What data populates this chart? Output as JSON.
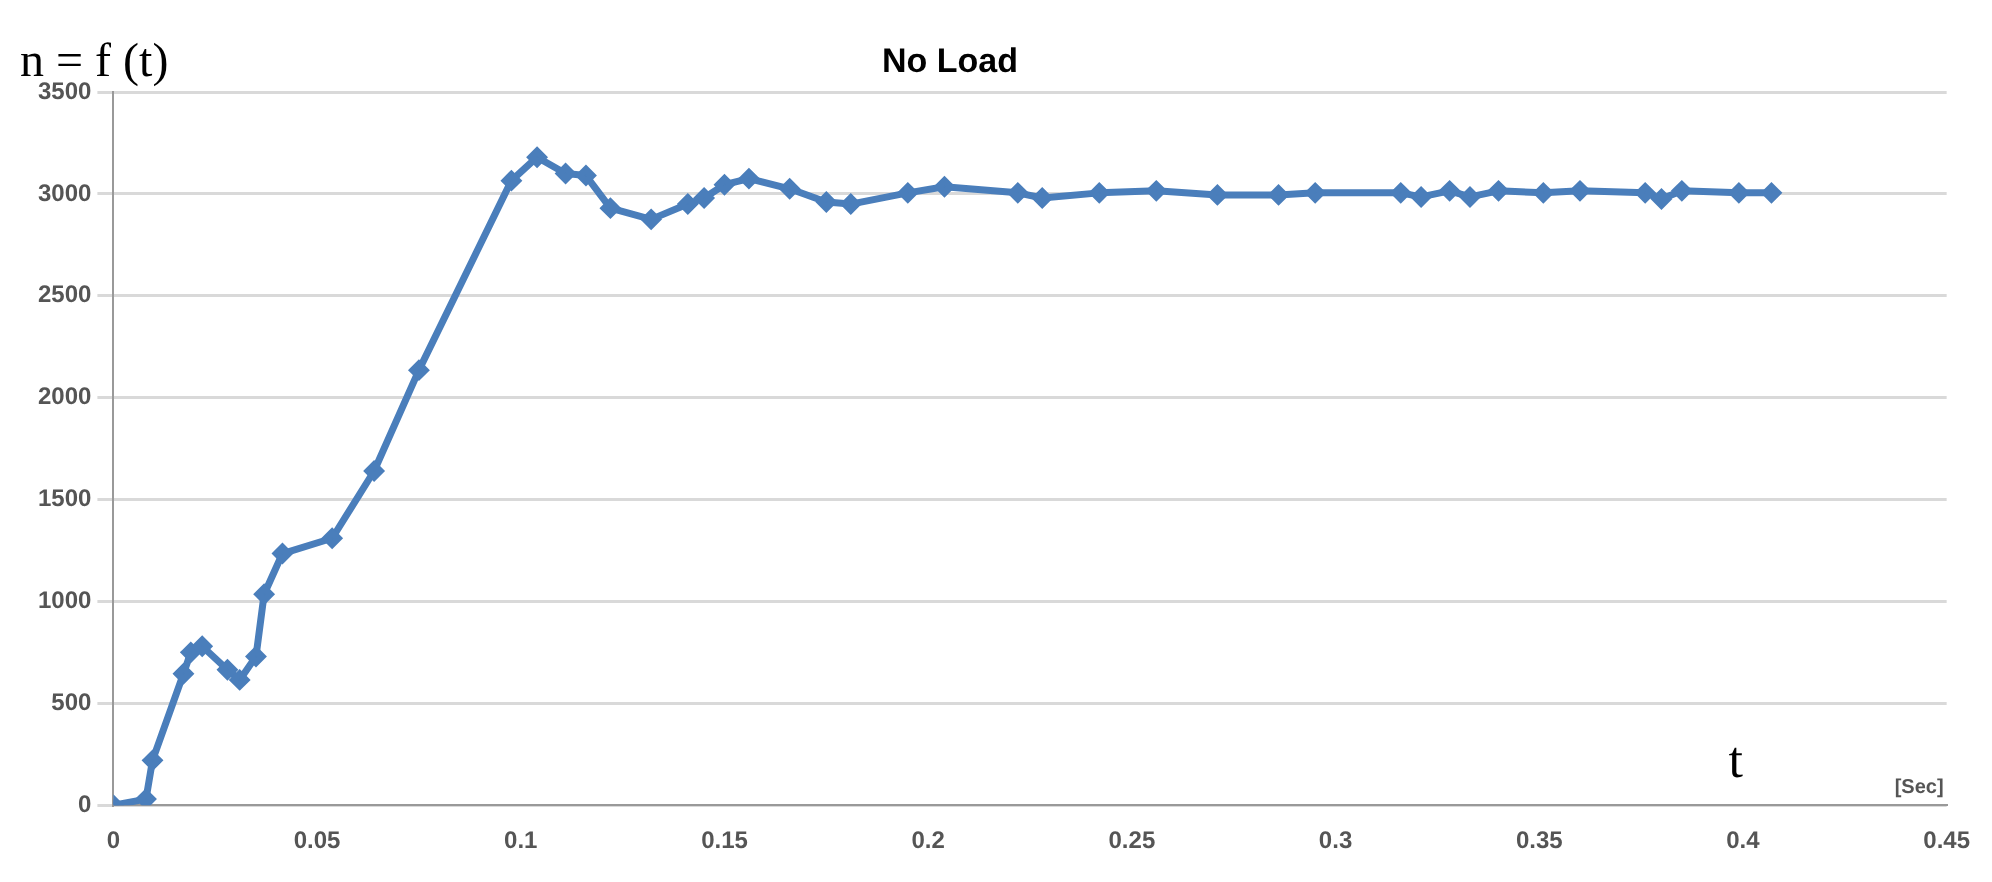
{
  "chart_data": {
    "type": "line",
    "title": "No Load",
    "ylabel": "n = f (t)",
    "xlabel": "t",
    "annotations": [
      "[Sec]"
    ],
    "x": [
      0,
      0.008,
      0.0096,
      0.0172,
      0.019,
      0.0218,
      0.028,
      0.031,
      0.035,
      0.037,
      0.0415,
      0.0537,
      0.064,
      0.075,
      0.0977,
      0.104,
      0.111,
      0.116,
      0.122,
      0.132,
      0.141,
      0.145,
      0.15,
      0.156,
      0.166,
      0.175,
      0.181,
      0.195,
      0.204,
      0.222,
      0.228,
      0.242,
      0.256,
      0.271,
      0.286,
      0.295,
      0.316,
      0.321,
      0.328,
      0.333,
      0.34,
      0.351,
      0.36,
      0.376,
      0.38,
      0.385,
      0.399,
      0.407
    ],
    "series": [
      {
        "color": "#4a7ebb",
        "values": [
          0,
          30,
          220,
          645,
          750,
          780,
          665,
          615,
          730,
          1035,
          1235,
          1310,
          1640,
          2135,
          3065,
          3180,
          3100,
          3090,
          2930,
          2875,
          2950,
          2980,
          3045,
          3075,
          3025,
          2960,
          2950,
          3005,
          3035,
          3005,
          2980,
          3005,
          3015,
          2995,
          2995,
          3005,
          3005,
          2985,
          3015,
          2985,
          3015,
          3005,
          3015,
          3005,
          2975,
          3015,
          3005,
          3005
        ]
      }
    ],
    "xlim": [
      0,
      0.45
    ],
    "xticks": [
      0,
      0.05,
      0.1,
      0.15,
      0.2,
      0.25,
      0.3,
      0.35,
      0.4,
      0.45
    ],
    "ylim": [
      0,
      3500
    ],
    "yticks": [
      0,
      500,
      1000,
      1500,
      2000,
      2500,
      3000,
      3500
    ],
    "grid": "y",
    "legend": false,
    "marker": "diamond",
    "line_style": "solid"
  }
}
